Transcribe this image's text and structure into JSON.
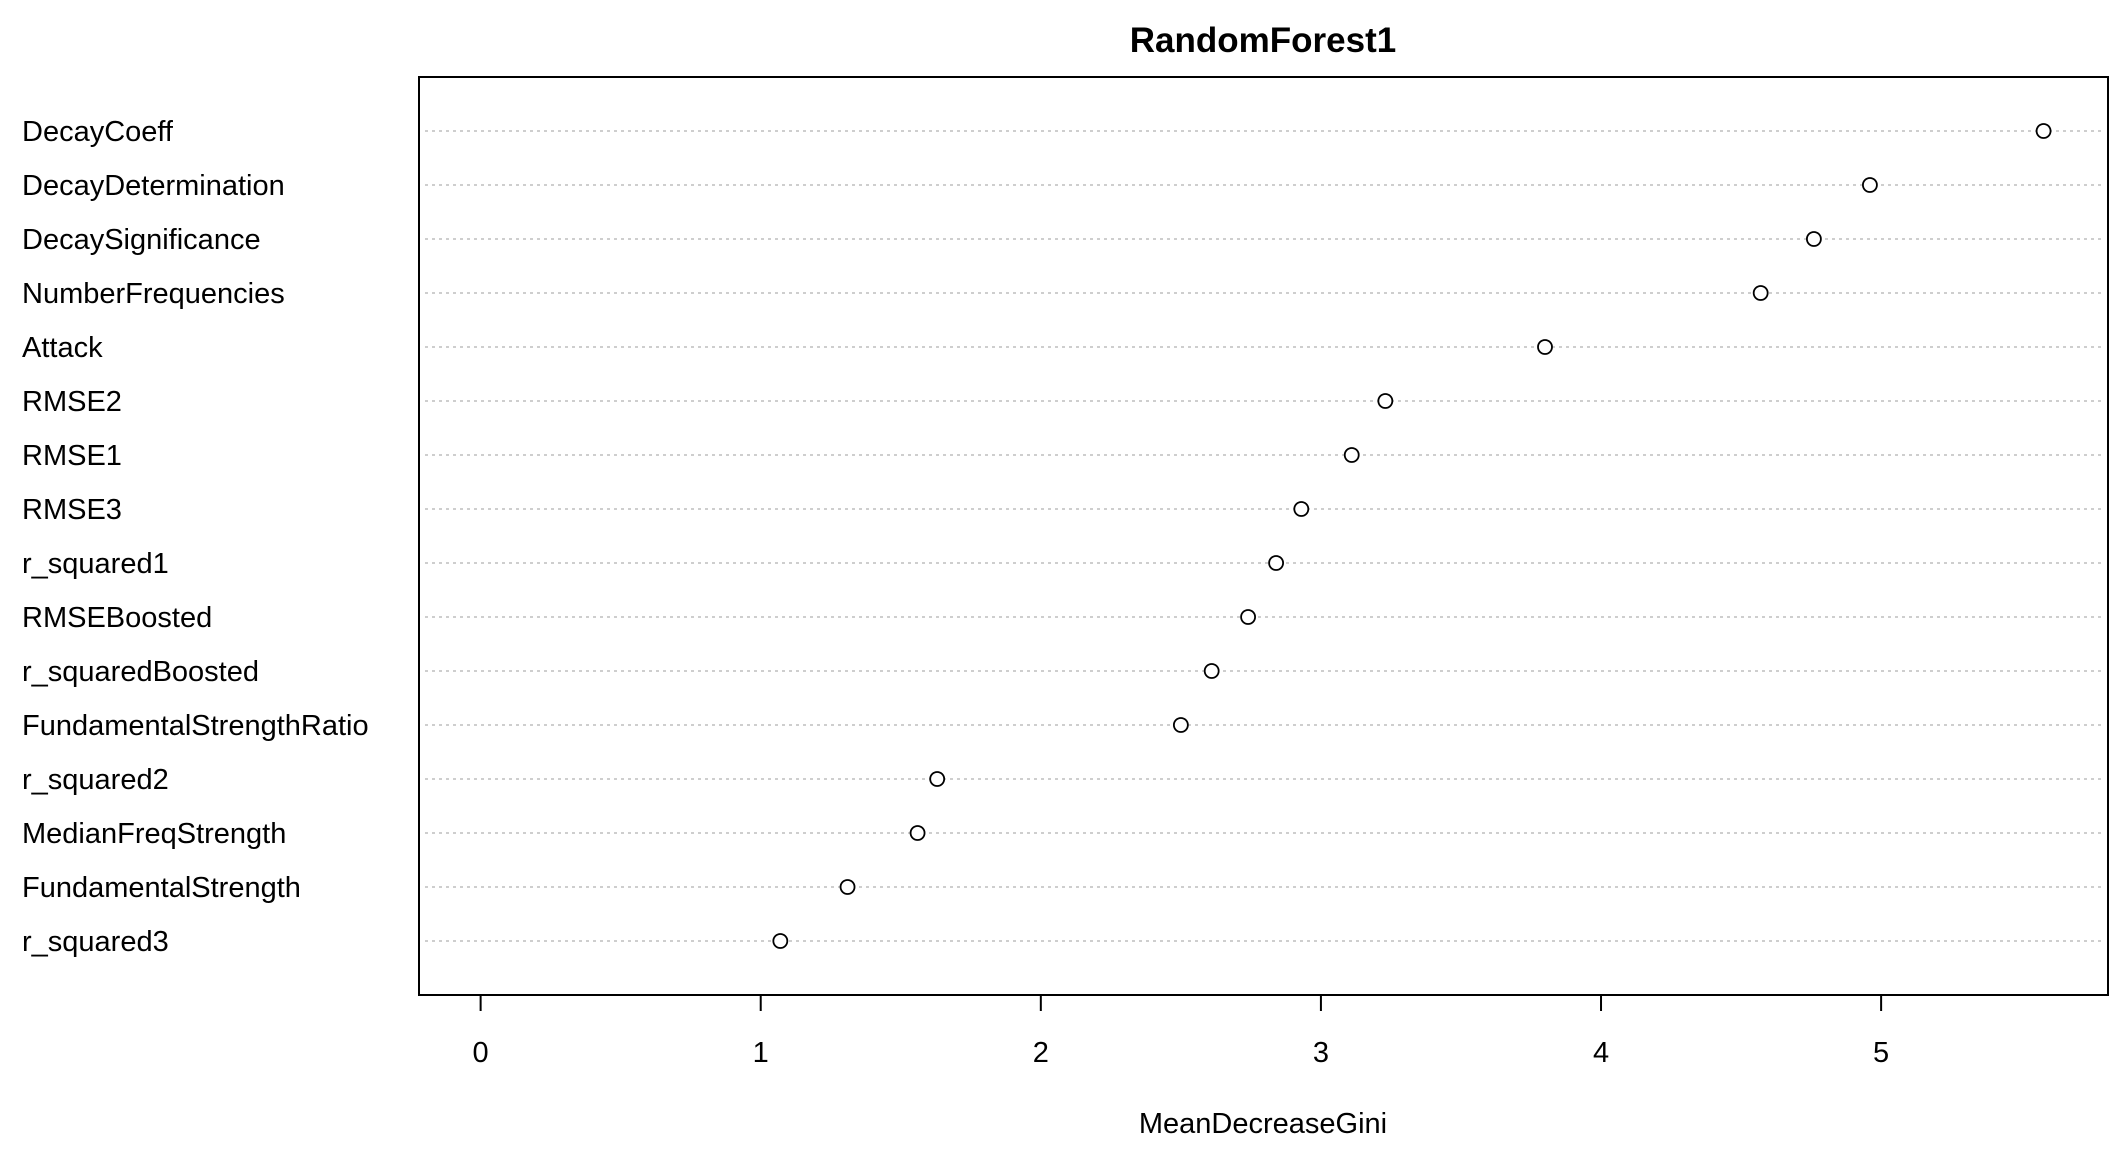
{
  "chart_data": {
    "type": "scatter",
    "title": "RandomForest1",
    "xlabel": "MeanDecreaseGini",
    "ylabel": "",
    "xlim": [
      -0.22,
      5.81
    ],
    "xticks": [
      0,
      1,
      2,
      3,
      4,
      5
    ],
    "grid": "horizontal dotted",
    "categories": [
      "DecayCoeff",
      "DecayDetermination",
      "DecaySignificance",
      "NumberFrequencies",
      "Attack",
      "RMSE2",
      "RMSE1",
      "RMSE3",
      "r_squared1",
      "RMSEBoosted",
      "r_squaredBoosted",
      "FundamentalStrengthRatio",
      "r_squared2",
      "MedianFreqStrength",
      "FundamentalStrength",
      "r_squared3"
    ],
    "values": [
      5.58,
      4.96,
      4.76,
      4.57,
      3.8,
      3.23,
      3.11,
      2.93,
      2.84,
      2.74,
      2.61,
      2.5,
      1.63,
      1.56,
      1.31,
      1.07
    ]
  }
}
